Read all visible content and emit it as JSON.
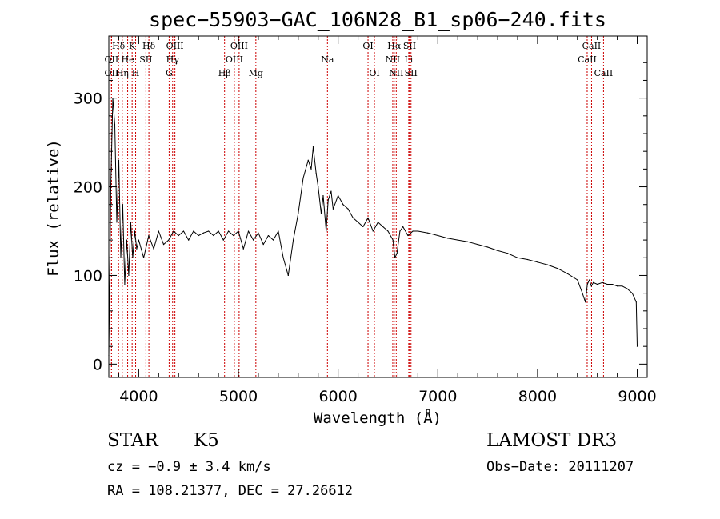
{
  "chart_data": {
    "type": "line",
    "title": "spec−55903−GAC_106N28_B1_sp06−240.fits",
    "xlabel": "Wavelength (Å)",
    "ylabel": "Flux (relative)",
    "xlim": [
      3700,
      9100
    ],
    "ylim": [
      -15,
      370
    ],
    "grid": false,
    "x_ticks": [
      4000,
      5000,
      6000,
      7000,
      8000,
      9000
    ],
    "x_tick_labels": [
      "4000",
      "5000",
      "6000",
      "7000",
      "8000",
      "9000"
    ],
    "y_ticks": [
      0,
      100,
      200,
      300
    ],
    "y_tick_labels": [
      "0",
      "100",
      "200",
      "300"
    ],
    "series": [
      {
        "name": "spectrum",
        "x": [
          3700,
          3720,
          3740,
          3760,
          3780,
          3800,
          3820,
          3840,
          3860,
          3880,
          3900,
          3920,
          3940,
          3960,
          3980,
          4000,
          4050,
          4100,
          4150,
          4200,
          4250,
          4300,
          4350,
          4400,
          4450,
          4500,
          4550,
          4600,
          4650,
          4700,
          4750,
          4800,
          4850,
          4900,
          4950,
          5000,
          5050,
          5100,
          5150,
          5200,
          5250,
          5300,
          5350,
          5400,
          5450,
          5500,
          5550,
          5600,
          5650,
          5700,
          5730,
          5750,
          5780,
          5800,
          5830,
          5850,
          5880,
          5900,
          5930,
          5950,
          6000,
          6050,
          6100,
          6150,
          6200,
          6250,
          6300,
          6350,
          6400,
          6450,
          6500,
          6550,
          6570,
          6590,
          6620,
          6650,
          6700,
          6750,
          6800,
          6900,
          7000,
          7100,
          7200,
          7300,
          7400,
          7500,
          7600,
          7700,
          7800,
          7900,
          8000,
          8100,
          8200,
          8300,
          8400,
          8450,
          8480,
          8500,
          8520,
          8540,
          8560,
          8600,
          8650,
          8700,
          8750,
          8800,
          8850,
          8900,
          8950,
          8990,
          9000
        ],
        "y": [
          10,
          200,
          300,
          270,
          160,
          230,
          120,
          180,
          90,
          140,
          100,
          160,
          120,
          150,
          130,
          140,
          120,
          145,
          130,
          150,
          135,
          140,
          150,
          145,
          150,
          140,
          150,
          145,
          148,
          150,
          145,
          150,
          140,
          150,
          145,
          150,
          130,
          150,
          140,
          148,
          135,
          145,
          140,
          150,
          120,
          100,
          140,
          170,
          210,
          230,
          220,
          245,
          215,
          200,
          170,
          190,
          150,
          185,
          195,
          175,
          190,
          180,
          175,
          165,
          160,
          155,
          165,
          150,
          160,
          155,
          150,
          140,
          120,
          125,
          150,
          155,
          145,
          150,
          150,
          148,
          145,
          142,
          140,
          138,
          135,
          132,
          128,
          125,
          120,
          118,
          115,
          112,
          108,
          102,
          95,
          80,
          70,
          90,
          95,
          88,
          92,
          90,
          92,
          90,
          90,
          88,
          88,
          85,
          80,
          70,
          20
        ],
        "color": "#000000"
      }
    ],
    "lines": [
      {
        "label": "Hδ",
        "x": 3798,
        "row": 1
      },
      {
        "label": "K",
        "x": 3934,
        "row": 1
      },
      {
        "label": "Hδ",
        "x": 4102,
        "row": 1
      },
      {
        "label": "OIII",
        "x": 4363,
        "row": 1
      },
      {
        "label": "OIII",
        "x": 5007,
        "row": 1
      },
      {
        "label": "OI",
        "x": 6300,
        "row": 1
      },
      {
        "label": "Hα",
        "x": 6563,
        "row": 1
      },
      {
        "label": "SII",
        "x": 6717,
        "row": 1
      },
      {
        "label": "CaII",
        "x": 8542,
        "row": 1
      },
      {
        "label": "OII",
        "x": 3727,
        "row": 2
      },
      {
        "label": "He",
        "x": 3889,
        "row": 2
      },
      {
        "label": "SII",
        "x": 4072,
        "row": 2
      },
      {
        "label": "Hγ",
        "x": 4340,
        "row": 2
      },
      {
        "label": "OIII",
        "x": 4959,
        "row": 2
      },
      {
        "label": "Na",
        "x": 5893,
        "row": 2
      },
      {
        "label": "NII",
        "x": 6548,
        "row": 2
      },
      {
        "label": "Li",
        "x": 6708,
        "row": 2
      },
      {
        "label": "CaII",
        "x": 8498,
        "row": 2
      },
      {
        "label": "OII",
        "x": 3727,
        "row": 3
      },
      {
        "label": "Hη",
        "x": 3835,
        "row": 3
      },
      {
        "label": "H",
        "x": 3969,
        "row": 3
      },
      {
        "label": "G",
        "x": 4305,
        "row": 3
      },
      {
        "label": "Hβ",
        "x": 4861,
        "row": 3
      },
      {
        "label": "Mg",
        "x": 5175,
        "row": 3
      },
      {
        "label": "OI",
        "x": 6364,
        "row": 3
      },
      {
        "label": "NII",
        "x": 6583,
        "row": 3
      },
      {
        "label": "SII",
        "x": 6731,
        "row": 3
      },
      {
        "label": "CaII",
        "x": 8662,
        "row": 3
      }
    ]
  },
  "info": {
    "object_class": "STAR",
    "subclass": "K5",
    "survey": "LAMOST DR3",
    "cz": "cz = −0.9 ± 3.4 km/s",
    "obs_date": "Obs−Date: 20111207",
    "coords": "RA = 108.21377, DEC =  27.26612"
  },
  "colors": {
    "line_marker": "#cc0000",
    "spectrum": "#000000",
    "axes": "#000000"
  }
}
